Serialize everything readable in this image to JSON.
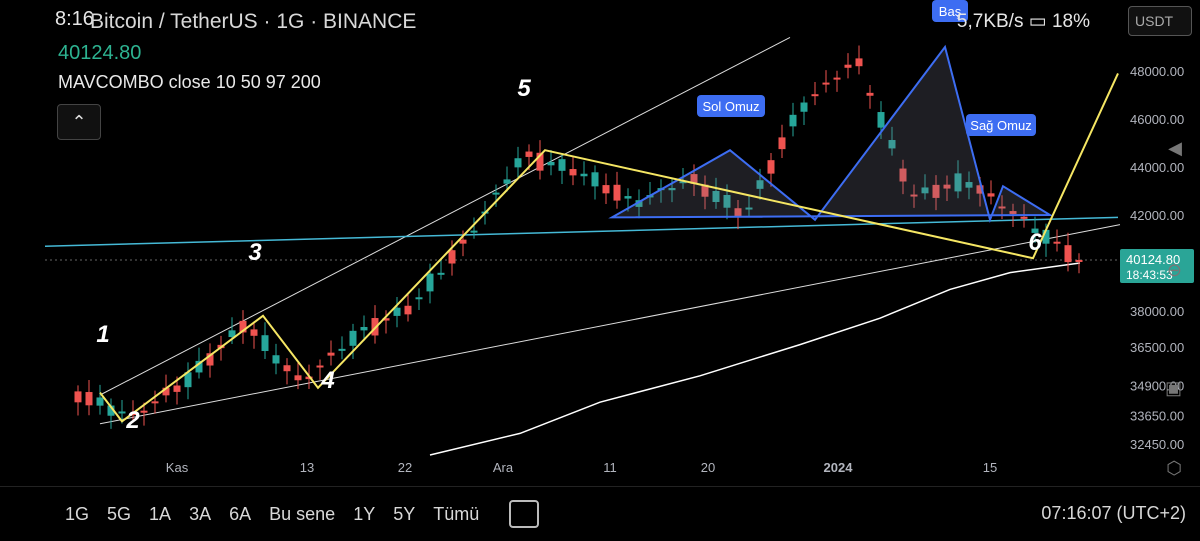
{
  "header": {
    "time": "8:16",
    "symbol_title": "Bitcoin / TetherUS · 1G · BINANCE",
    "last_price": "40124.80",
    "indicator_label": "MAVCOMBO close 10 50 97 200",
    "network_speed": "5,7KB/s",
    "battery": "18%",
    "currency": "USDT"
  },
  "price_axis": {
    "labels": [
      "48000.00",
      "46000.00",
      "44000.00",
      "42000.00",
      "38000.00",
      "36500.00",
      "34900.00",
      "33650.00",
      "32450.00"
    ],
    "current_price_label": "40124.80",
    "countdown_label": "18:43:53"
  },
  "time_axis": {
    "labels": [
      "Kas",
      "13",
      "22",
      "Ara",
      "11",
      "20",
      "2024",
      "15"
    ]
  },
  "annotations": {
    "wave_labels": [
      "1",
      "2",
      "3",
      "4",
      "5",
      "6"
    ],
    "left_shoulder": "Sol Omuz",
    "head": "Baş",
    "right_shoulder": "Sağ Omuz"
  },
  "bottom_bar": {
    "ranges": [
      "1G",
      "5G",
      "1A",
      "3A",
      "6A",
      "Bu sene",
      "1Y",
      "5Y",
      "Tümü"
    ],
    "clock": "07:16:07 (UTC+2)"
  },
  "colors": {
    "up": "#26a69a",
    "down": "#ef5350",
    "wave": "#f5e663",
    "pattern": "#3d6df2",
    "neckline": "#45b9d6",
    "ma": "#ffffff"
  },
  "chart_data": {
    "type": "candlestick",
    "title": "Bitcoin / TetherUS · 1G · BINANCE",
    "ylim": [
      32000,
      49500
    ],
    "x_ticks": [
      "Kas",
      "13",
      "22",
      "Ara",
      "11",
      "20",
      "2024",
      "15"
    ],
    "approx_close_path": [
      34500,
      33600,
      35200,
      37500,
      35000,
      37000,
      38200,
      41000,
      44500,
      43800,
      42500,
      43500,
      42000,
      46500,
      48500,
      42800,
      43400,
      41800,
      40124.8
    ],
    "wave_points": [
      {
        "label": "1",
        "value": 34600
      },
      {
        "label": "2",
        "value": 33400
      },
      {
        "label": "3",
        "value": 37800
      },
      {
        "label": "4",
        "value": 34800
      },
      {
        "label": "5",
        "value": 44700
      },
      {
        "label": "6",
        "value": 40200
      }
    ],
    "head_and_shoulders": {
      "left_shoulder": 44700,
      "head": 49000,
      "right_shoulder": 43200,
      "neckline": 41900
    }
  }
}
